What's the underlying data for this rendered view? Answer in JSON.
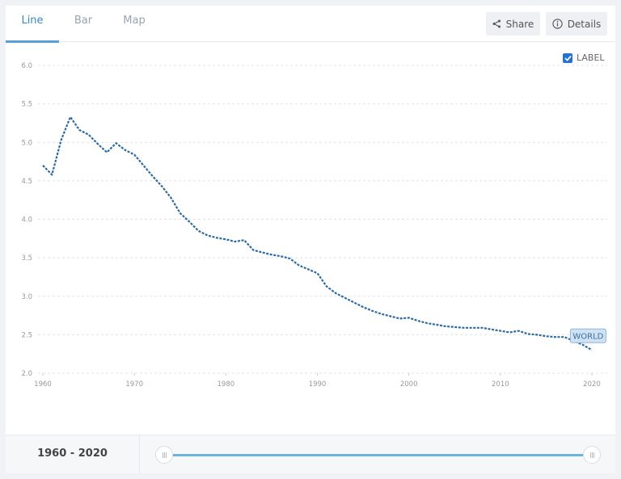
{
  "tabs": [
    {
      "label": "Line",
      "active": true
    },
    {
      "label": "Bar",
      "active": false
    },
    {
      "label": "Map",
      "active": false
    }
  ],
  "toolbar": {
    "share_label": "Share",
    "details_label": "Details",
    "label_toggle": "LABEL",
    "label_checked": true
  },
  "footer": {
    "range_label": "1960 - 2020",
    "slider_start": 1960,
    "slider_end": 2020
  },
  "colors": {
    "accent": "#3a87c8",
    "line": "#2e6aa0",
    "slider": "#6cb3de",
    "checkbox": "#2672d0"
  },
  "chart_data": {
    "type": "line",
    "title": "",
    "xlabel": "",
    "ylabel": "",
    "ylim": [
      2.0,
      6.0
    ],
    "xlim": [
      1960,
      2020
    ],
    "yticks": [
      "2.0",
      "2.5",
      "3.0",
      "3.5",
      "4.0",
      "4.5",
      "5.0",
      "5.5",
      "6.0"
    ],
    "xticks": [
      "1960",
      "1970",
      "1980",
      "1990",
      "2000",
      "2010",
      "2020"
    ],
    "grid": true,
    "line_style": "dotted",
    "series": [
      {
        "name": "WORLD",
        "end_label": "WORLD",
        "x": [
          1960,
          1961,
          1962,
          1963,
          1964,
          1965,
          1966,
          1967,
          1968,
          1969,
          1970,
          1971,
          1972,
          1973,
          1974,
          1975,
          1976,
          1977,
          1978,
          1979,
          1980,
          1981,
          1982,
          1983,
          1984,
          1985,
          1986,
          1987,
          1988,
          1989,
          1990,
          1991,
          1992,
          1993,
          1994,
          1995,
          1996,
          1997,
          1998,
          1999,
          2000,
          2001,
          2002,
          2003,
          2004,
          2005,
          2006,
          2007,
          2008,
          2009,
          2010,
          2011,
          2012,
          2013,
          2014,
          2015,
          2016,
          2017,
          2018,
          2019,
          2020
        ],
        "values": [
          4.7,
          4.58,
          5.03,
          5.33,
          5.16,
          5.1,
          4.98,
          4.87,
          4.99,
          4.9,
          4.84,
          4.7,
          4.56,
          4.43,
          4.28,
          4.08,
          3.97,
          3.85,
          3.79,
          3.76,
          3.74,
          3.71,
          3.73,
          3.6,
          3.57,
          3.54,
          3.52,
          3.49,
          3.4,
          3.35,
          3.3,
          3.13,
          3.04,
          2.98,
          2.92,
          2.86,
          2.81,
          2.77,
          2.74,
          2.71,
          2.72,
          2.68,
          2.65,
          2.63,
          2.61,
          2.6,
          2.59,
          2.59,
          2.59,
          2.57,
          2.55,
          2.53,
          2.55,
          2.51,
          2.5,
          2.48,
          2.47,
          2.47,
          2.42,
          2.37,
          2.3
        ]
      }
    ]
  }
}
